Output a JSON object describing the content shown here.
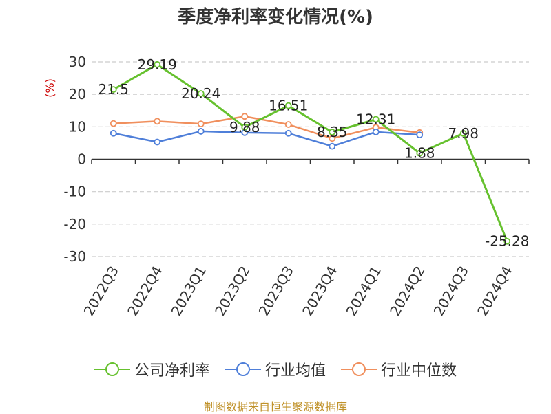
{
  "title": "季度净利率变化情况(%)",
  "source": "制图数据来自恒生聚源数据库",
  "chart_data": {
    "type": "line",
    "title": "季度净利率变化情况(%)",
    "ylabel": "(%)",
    "xlabel": "",
    "ylim": [
      -30,
      30
    ],
    "yticks": [
      30,
      20,
      10,
      0,
      -10,
      -20,
      -30
    ],
    "grid": true,
    "legend_position": "bottom",
    "categories": [
      "2022Q3",
      "2022Q4",
      "2023Q1",
      "2023Q2",
      "2023Q3",
      "2023Q4",
      "2024Q1",
      "2024Q2",
      "2024Q3",
      "2024Q4"
    ],
    "series": [
      {
        "name": "公司净利率",
        "color": "#66c12e",
        "values": [
          21.5,
          29.19,
          20.24,
          9.88,
          16.51,
          8.35,
          12.31,
          1.88,
          7.98,
          -25.28
        ],
        "labels": [
          "21.5",
          "29.19",
          "20.24",
          "9.88",
          "16.51",
          "8.35",
          "12.31",
          "1.88",
          "7.98",
          "-25.28"
        ]
      },
      {
        "name": "行业均值",
        "color": "#4f7fd9",
        "values": [
          8.0,
          5.3,
          8.6,
          8.2,
          8.0,
          4.0,
          8.4,
          7.5,
          null,
          null
        ]
      },
      {
        "name": "行业中位数",
        "color": "#f08f5d",
        "values": [
          11.0,
          11.7,
          10.9,
          13.2,
          10.7,
          6.4,
          9.8,
          8.2,
          null,
          null
        ]
      }
    ]
  }
}
